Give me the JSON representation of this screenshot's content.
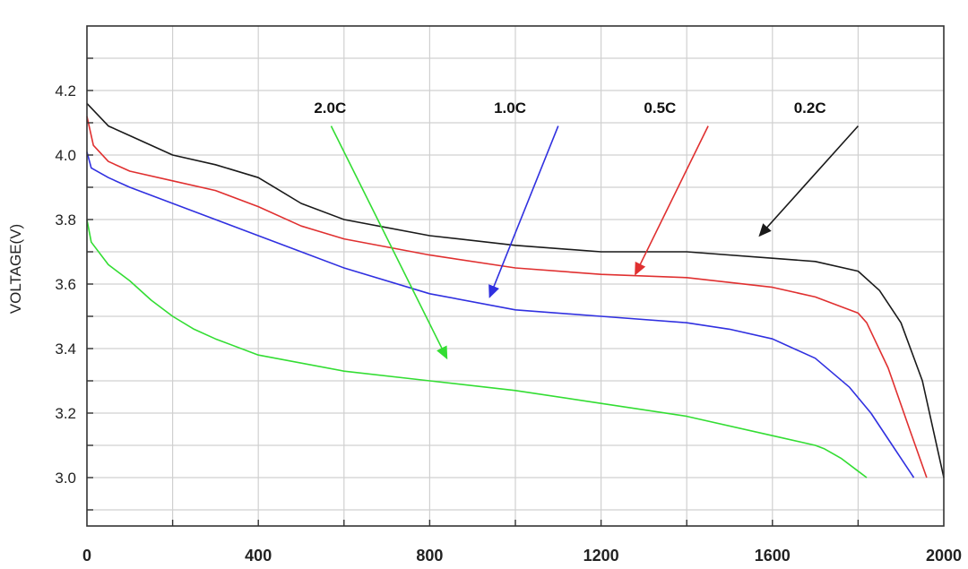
{
  "chart_data": {
    "type": "line",
    "title": "",
    "xlabel": "",
    "ylabel": "VOLTAGE(V)",
    "xlim": [
      0,
      2000
    ],
    "ylim": [
      2.85,
      4.4
    ],
    "x_ticks": [
      0,
      400,
      800,
      1200,
      1600,
      2000
    ],
    "x_tick_labels": [
      "0",
      "400",
      "800",
      "1200",
      "1600",
      "2000"
    ],
    "y_ticks": [
      3.0,
      3.2,
      3.4,
      3.6,
      3.8,
      4.0,
      4.2
    ],
    "y_tick_labels": [
      "3.0",
      "3.2",
      "3.4",
      "3.6",
      "3.8",
      "4.0",
      "4.2"
    ],
    "grid": true,
    "series": [
      {
        "name": "0.2C",
        "color": "#1a1a1a",
        "x": [
          0,
          50,
          100,
          200,
          300,
          400,
          450,
          500,
          600,
          800,
          1000,
          1200,
          1400,
          1600,
          1700,
          1800,
          1850,
          1900,
          1950,
          2000
        ],
        "y": [
          4.16,
          4.09,
          4.06,
          4.0,
          3.97,
          3.93,
          3.89,
          3.85,
          3.8,
          3.75,
          3.72,
          3.7,
          3.7,
          3.68,
          3.67,
          3.64,
          3.58,
          3.48,
          3.3,
          3.0
        ]
      },
      {
        "name": "0.5C",
        "color": "#e03030",
        "x": [
          0,
          15,
          50,
          100,
          200,
          300,
          400,
          500,
          600,
          800,
          1000,
          1200,
          1400,
          1600,
          1700,
          1800,
          1820,
          1870,
          1920,
          1960
        ],
        "y": [
          4.12,
          4.03,
          3.98,
          3.95,
          3.92,
          3.89,
          3.84,
          3.78,
          3.74,
          3.69,
          3.65,
          3.63,
          3.62,
          3.59,
          3.56,
          3.51,
          3.48,
          3.34,
          3.15,
          3.0
        ]
      },
      {
        "name": "1.0C",
        "color": "#3030e0",
        "x": [
          0,
          10,
          50,
          100,
          200,
          300,
          400,
          500,
          600,
          800,
          1000,
          1200,
          1400,
          1500,
          1600,
          1700,
          1780,
          1830,
          1880,
          1930
        ],
        "y": [
          4.01,
          3.96,
          3.93,
          3.9,
          3.85,
          3.8,
          3.75,
          3.7,
          3.65,
          3.57,
          3.52,
          3.5,
          3.48,
          3.46,
          3.43,
          3.37,
          3.28,
          3.2,
          3.1,
          3.0
        ]
      },
      {
        "name": "2.0C",
        "color": "#33dd33",
        "x": [
          0,
          10,
          50,
          100,
          150,
          200,
          250,
          300,
          400,
          600,
          800,
          1000,
          1200,
          1400,
          1600,
          1700,
          1720,
          1760,
          1800,
          1820
        ],
        "y": [
          3.8,
          3.73,
          3.66,
          3.61,
          3.55,
          3.5,
          3.46,
          3.43,
          3.38,
          3.33,
          3.3,
          3.27,
          3.23,
          3.19,
          3.13,
          3.1,
          3.09,
          3.06,
          3.02,
          3.0
        ]
      }
    ],
    "annotations": [
      {
        "text": "2.0C",
        "color": "#33dd33",
        "label_x": 530,
        "label_y": 4.13,
        "arrow_from": [
          570,
          4.09
        ],
        "arrow_to": [
          840,
          3.37
        ]
      },
      {
        "text": "1.0C",
        "color": "#3030e0",
        "label_x": 950,
        "label_y": 4.13,
        "arrow_from": [
          1100,
          4.09
        ],
        "arrow_to": [
          940,
          3.56
        ]
      },
      {
        "text": "0.5C",
        "color": "#e03030",
        "label_x": 1300,
        "label_y": 4.13,
        "arrow_from": [
          1450,
          4.09
        ],
        "arrow_to": [
          1280,
          3.63
        ]
      },
      {
        "text": "0.2C",
        "color": "#1a1a1a",
        "label_x": 1650,
        "label_y": 4.13,
        "arrow_from": [
          1800,
          4.09
        ],
        "arrow_to": [
          1570,
          3.75
        ]
      }
    ]
  }
}
